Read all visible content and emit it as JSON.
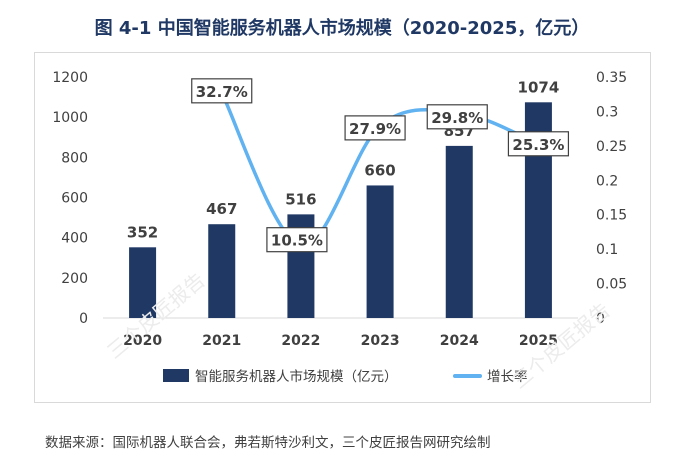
{
  "title": "图 4-1 中国智能服务机器人市场规模（2020-2025，亿元）",
  "source": "数据来源：国际机器人联合会，弗若斯特沙利文，三个皮匠报告网研究绘制",
  "watermark": "三个皮匠报告",
  "colors": {
    "bar": "#1f3864",
    "line": "#61b2f0",
    "title": "#1f3864",
    "axis_text": "#404040"
  },
  "chart_data": {
    "type": "bar",
    "categories": [
      "2020",
      "2021",
      "2022",
      "2023",
      "2024",
      "2025"
    ],
    "series": [
      {
        "name": "智能服务机器人市场规模（亿元）",
        "type": "bar",
        "axis": "left",
        "values": [
          352,
          467,
          516,
          660,
          857,
          1074
        ],
        "labels": [
          "352",
          "467",
          "516",
          "660",
          "857",
          "1074"
        ]
      },
      {
        "name": "增长率",
        "type": "line",
        "axis": "right",
        "x": [
          "2021",
          "2022",
          "2023",
          "2024",
          "2025"
        ],
        "values": [
          0.327,
          0.105,
          0.279,
          0.298,
          0.253
        ],
        "labels": [
          "32.7%",
          "10.5%",
          "27.9%",
          "29.8%",
          "25.3%"
        ]
      }
    ],
    "y_left": {
      "min": 0,
      "max": 1200,
      "ticks": [
        "0",
        "200",
        "400",
        "600",
        "800",
        "1000",
        "1200"
      ]
    },
    "y_right": {
      "min": 0,
      "max": 0.35,
      "ticks": [
        "0",
        "0.05",
        "0.1",
        "0.15",
        "0.2",
        "0.25",
        "0.3",
        "0.35"
      ]
    },
    "legend_position": "bottom",
    "grid": false
  }
}
